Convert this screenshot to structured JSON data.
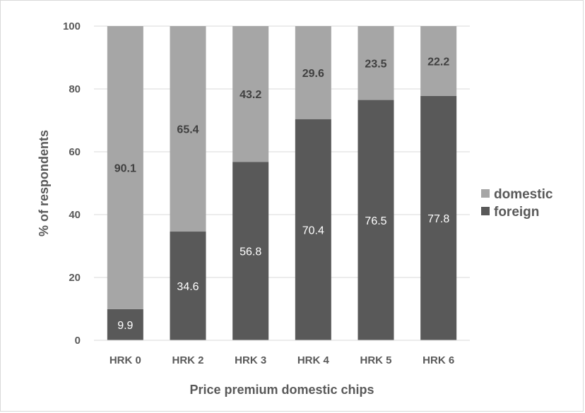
{
  "chart_data": {
    "type": "bar",
    "stacked": true,
    "categories": [
      "HRK 0",
      "HRK 2",
      "HRK 3",
      "HRK 4",
      "HRK 5",
      "HRK 6"
    ],
    "series": [
      {
        "name": "foreign",
        "values": [
          9.9,
          34.6,
          56.8,
          70.4,
          76.5,
          77.8
        ],
        "color": "#595959"
      },
      {
        "name": "domestic",
        "values": [
          90.1,
          65.4,
          43.2,
          29.6,
          23.5,
          22.2
        ],
        "color": "#a6a6a6"
      }
    ],
    "xlabel": "Price premium domestic chips",
    "ylabel": "% of respondents",
    "ylim": [
      0,
      100
    ],
    "yticks": [
      0,
      20,
      40,
      60,
      80,
      100
    ],
    "grid": true,
    "legend": {
      "position": "right",
      "order": [
        "domestic",
        "foreign"
      ]
    }
  }
}
